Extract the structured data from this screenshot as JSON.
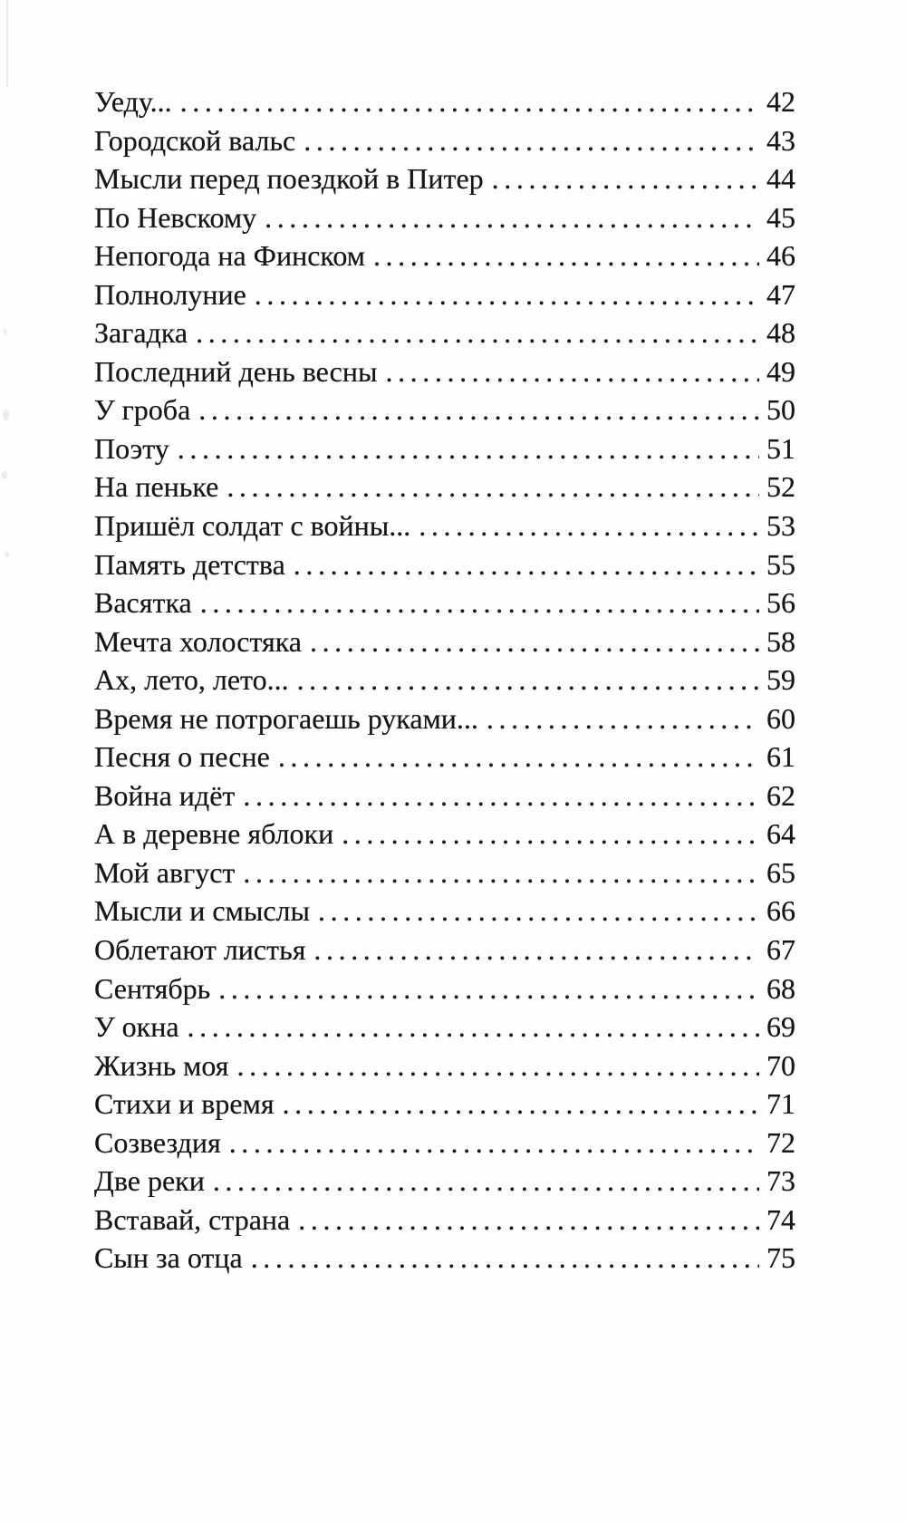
{
  "page": {
    "kind": "book-table-of-contents-scan",
    "language": "ru",
    "background_color": "#fefefe",
    "ink_color": "#161616"
  },
  "toc": {
    "leader_char": ". ",
    "leader_repeat": 70,
    "entries": [
      {
        "title": "Уеду...",
        "page": "42"
      },
      {
        "title": "Городской вальс",
        "page": "43"
      },
      {
        "title": "Мысли перед поездкой в Питер",
        "page": "44"
      },
      {
        "title": "По Невскому",
        "page": "45"
      },
      {
        "title": "Непогода на Финском",
        "page": "46"
      },
      {
        "title": "Полнолуние",
        "page": "47"
      },
      {
        "title": "Загадка",
        "page": "48"
      },
      {
        "title": "Последний день весны",
        "page": "49"
      },
      {
        "title": "У гроба",
        "page": "50"
      },
      {
        "title": "Поэту",
        "page": "51"
      },
      {
        "title": "На пеньке",
        "page": "52"
      },
      {
        "title": "Пришёл солдат с войны...",
        "page": "53"
      },
      {
        "title": "Память детства",
        "page": "55"
      },
      {
        "title": "Васятка",
        "page": "56"
      },
      {
        "title": "Мечта холостяка",
        "page": "58"
      },
      {
        "title": "Ах, лето, лето...",
        "page": "59"
      },
      {
        "title": "Время не потрогаешь руками...",
        "page": "60"
      },
      {
        "title": "Песня о песне",
        "page": "61"
      },
      {
        "title": "Война идёт",
        "page": "62"
      },
      {
        "title": "А в деревне яблоки",
        "page": "64"
      },
      {
        "title": "Мой август",
        "page": "65"
      },
      {
        "title": "Мысли и смыслы",
        "page": "66"
      },
      {
        "title": "Облетают листья",
        "page": "67"
      },
      {
        "title": "Сентябрь",
        "page": "68"
      },
      {
        "title": "У окна",
        "page": "69"
      },
      {
        "title": "Жизнь моя",
        "page": "70"
      },
      {
        "title": "Стихи и время",
        "page": "71"
      },
      {
        "title": "Созвездия",
        "page": "72"
      },
      {
        "title": "Две реки",
        "page": "73"
      },
      {
        "title": "Вставай, страна",
        "page": "74"
      },
      {
        "title": "Сын за отца",
        "page": "75"
      }
    ]
  }
}
